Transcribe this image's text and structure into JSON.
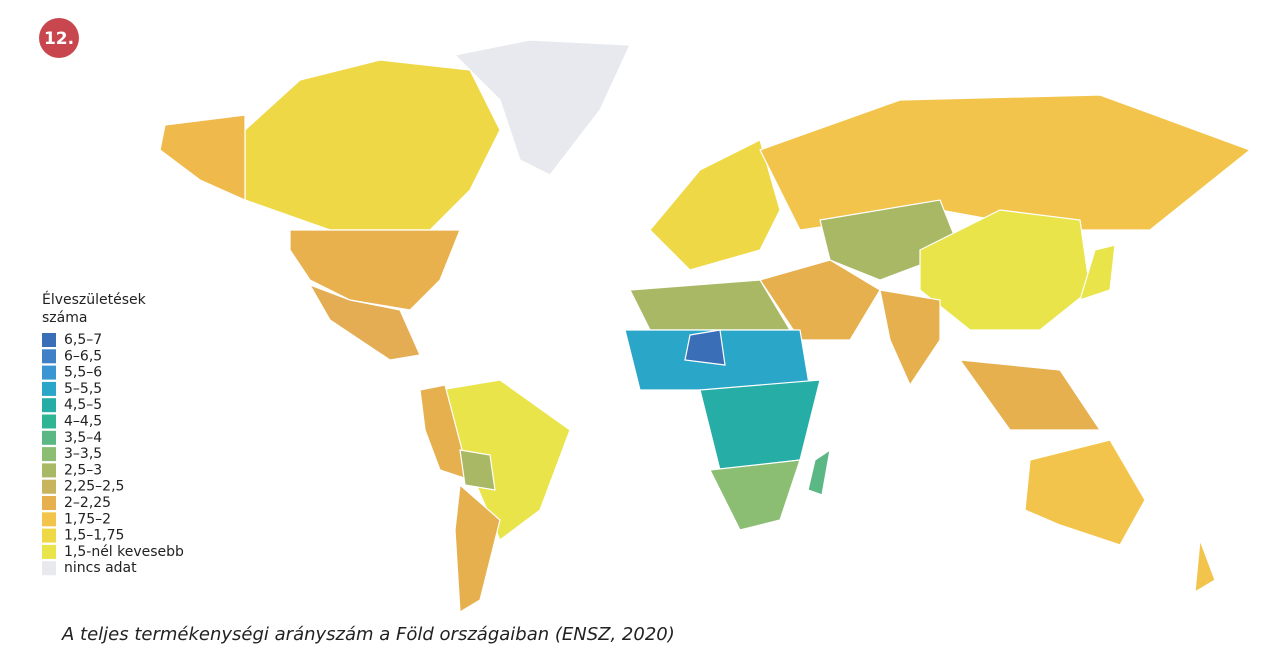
{
  "badge": "12.",
  "legend": {
    "title_lines": [
      "Élveszületések",
      "száma"
    ],
    "items": [
      {
        "label": "6,5–7",
        "color": "#3a6fb8"
      },
      {
        "label": "6–6,5",
        "color": "#3f80c6"
      },
      {
        "label": "5,5–6",
        "color": "#3a95d3"
      },
      {
        "label": "5–5,5",
        "color": "#2aa6c8"
      },
      {
        "label": "4,5–5",
        "color": "#25ada6"
      },
      {
        "label": "4–4,5",
        "color": "#2fb593"
      },
      {
        "label": "3,5–4",
        "color": "#5bb784"
      },
      {
        "label": "3–3,5",
        "color": "#8bbd73"
      },
      {
        "label": "2,5–3",
        "color": "#a9b865"
      },
      {
        "label": "2,25–2,5",
        "color": "#c8b35e"
      },
      {
        "label": "2–2,25",
        "color": "#e6b04f"
      },
      {
        "label": "1,75–2",
        "color": "#f3c44b"
      },
      {
        "label": "1,5–1,75",
        "color": "#eed845"
      },
      {
        "label": "1,5-nél kevesebb",
        "color": "#e8e449"
      },
      {
        "label": "nincs adat",
        "color": "#e7e9ee"
      }
    ]
  },
  "caption": "A teljes termékenységi arányszám a Föld országaiban (ENSZ, 2020)"
}
